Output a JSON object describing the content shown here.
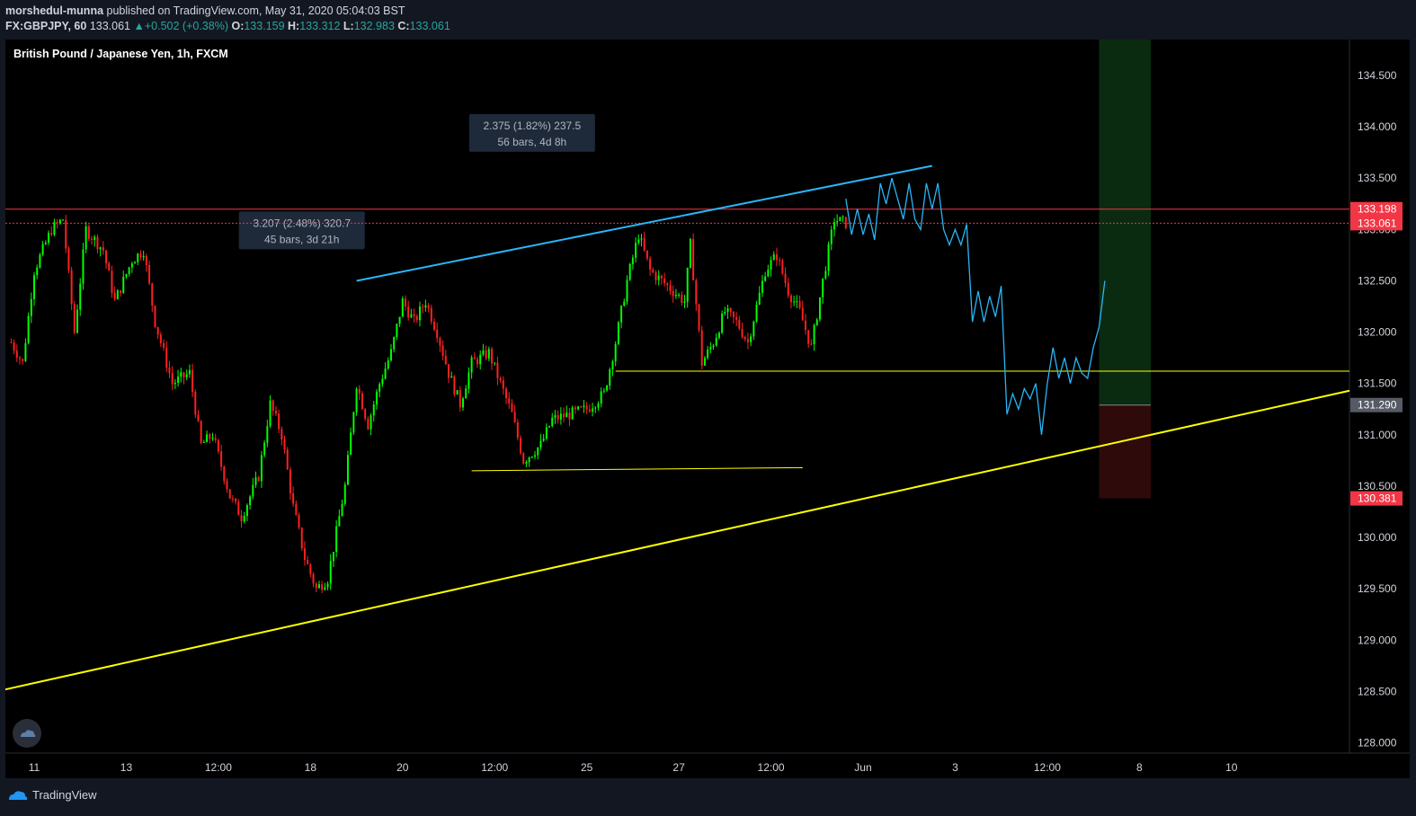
{
  "header": {
    "author": "morshedul-munna",
    "published_text": "published on TradingView.com, May 31, 2020 05:04:03 BST",
    "symbol": "FX:GBPJPY, 60",
    "last": "133.061",
    "change": "+0.502 (+0.38%)",
    "o_label": "O:",
    "o_value": "133.159",
    "h_label": "H:",
    "h_value": "133.312",
    "l_label": "L:",
    "l_value": "132.983",
    "c_label": "C:",
    "c_value": "133.061"
  },
  "footer": {
    "brand": "TradingView"
  },
  "colors": {
    "up": "#26a69a",
    "candle_up": "#00ff00",
    "candle_down": "#ff2020",
    "red_line": "#f23645",
    "cyan": "#29b6f6",
    "yellow": "#ffff00"
  },
  "chart_data": {
    "type": "candlestick",
    "title": "British Pound / Japanese Yen, 1h, FXCM",
    "ylim": [
      127.9,
      134.85
    ],
    "y_ticks": [
      "134.500",
      "134.000",
      "133.500",
      "133.000",
      "132.500",
      "132.000",
      "131.500",
      "131.000",
      "130.500",
      "130.000",
      "129.500",
      "129.000",
      "128.500",
      "128.000"
    ],
    "y_tick_values": [
      134.5,
      134.0,
      133.5,
      133.0,
      132.5,
      132.0,
      131.5,
      131.0,
      130.5,
      130.0,
      129.5,
      129.0,
      128.5,
      128.0
    ],
    "x_ticks": [
      "11",
      "13",
      "12:00",
      "18",
      "20",
      "12:00",
      "25",
      "27",
      "12:00",
      "Jun",
      "3",
      "12:00",
      "8",
      "10"
    ],
    "x_tick_bars": [
      8,
      40,
      72,
      104,
      136,
      168,
      200,
      232,
      264,
      296,
      328,
      360,
      392,
      424
    ],
    "price_labels": [
      {
        "text": "133.198",
        "value": 133.198,
        "bg": "#f23645",
        "fg": "#ffffff"
      },
      {
        "text": "133.061",
        "value": 133.061,
        "bg": "#f23645",
        "fg": "#ffffff"
      },
      {
        "text": "131.290",
        "value": 131.29,
        "bg": "#555a64",
        "fg": "#ffffff"
      },
      {
        "text": "130.381",
        "value": 130.381,
        "bg": "#f23645",
        "fg": "#ffffff"
      }
    ],
    "measure_boxes": [
      {
        "line1": "3.207 (2.48%) 320.7",
        "line2": "45 bars, 3d 21h",
        "bar": 101,
        "price": 133.0
      },
      {
        "line1": "2.375 (1.82%) 237.5",
        "line2": "56 bars, 4d 8h",
        "bar": 181,
        "price": 133.95
      }
    ],
    "waypoints": [
      [
        0,
        131.9
      ],
      [
        4,
        131.7
      ],
      [
        8,
        132.6
      ],
      [
        14,
        133.0
      ],
      [
        18,
        133.1
      ],
      [
        22,
        132.0
      ],
      [
        26,
        133.0
      ],
      [
        32,
        132.8
      ],
      [
        36,
        132.3
      ],
      [
        42,
        132.7
      ],
      [
        46,
        132.8
      ],
      [
        50,
        132.1
      ],
      [
        56,
        131.5
      ],
      [
        62,
        131.6
      ],
      [
        66,
        130.9
      ],
      [
        70,
        131.0
      ],
      [
        76,
        130.4
      ],
      [
        80,
        130.2
      ],
      [
        86,
        130.6
      ],
      [
        90,
        131.3
      ],
      [
        94,
        131.0
      ],
      [
        98,
        130.3
      ],
      [
        102,
        129.8
      ],
      [
        106,
        129.5
      ],
      [
        110,
        129.6
      ],
      [
        116,
        130.5
      ],
      [
        120,
        131.5
      ],
      [
        124,
        131.1
      ],
      [
        128,
        131.5
      ],
      [
        132,
        131.8
      ],
      [
        136,
        132.3
      ],
      [
        140,
        132.1
      ],
      [
        144,
        132.3
      ],
      [
        148,
        132.0
      ],
      [
        152,
        131.6
      ],
      [
        156,
        131.3
      ],
      [
        160,
        131.7
      ],
      [
        166,
        131.8
      ],
      [
        170,
        131.5
      ],
      [
        174,
        131.2
      ],
      [
        178,
        130.75
      ],
      [
        184,
        130.9
      ],
      [
        188,
        131.15
      ],
      [
        194,
        131.2
      ],
      [
        200,
        131.25
      ],
      [
        206,
        131.4
      ],
      [
        210,
        131.9
      ],
      [
        214,
        132.5
      ],
      [
        218,
        132.95
      ],
      [
        222,
        132.6
      ],
      [
        226,
        132.5
      ],
      [
        230,
        132.4
      ],
      [
        234,
        132.3
      ],
      [
        236,
        132.85
      ],
      [
        240,
        131.7
      ],
      [
        244,
        131.9
      ],
      [
        248,
        132.2
      ],
      [
        252,
        132.1
      ],
      [
        256,
        131.9
      ],
      [
        262,
        132.6
      ],
      [
        266,
        132.75
      ],
      [
        270,
        132.4
      ],
      [
        274,
        132.2
      ],
      [
        278,
        131.85
      ],
      [
        282,
        132.5
      ],
      [
        286,
        133.1
      ],
      [
        290,
        133.06
      ]
    ],
    "bar_range": [
      -2,
      465
    ],
    "trendlines": [
      {
        "name": "upper-cyan",
        "color": "#29b6f6",
        "x1": 120,
        "y1": 132.5,
        "x2": 320,
        "y2": 133.62
      },
      {
        "name": "support-yellow",
        "color": "#ffff00",
        "x1": -2,
        "y1": 128.52,
        "x2": 465,
        "y2": 131.43
      },
      {
        "name": "flat-yellow-low",
        "color": "#ffff00",
        "x1": 160,
        "y1": 130.65,
        "x2": 275,
        "y2": 130.68
      },
      {
        "name": "flat-yellow-mid",
        "color": "#ffff00",
        "x1": 210,
        "y1": 131.62,
        "x2": 465,
        "y2": 131.62
      }
    ],
    "hlines": [
      {
        "name": "resistance-solid",
        "value": 133.198,
        "color": "#f23645",
        "dash": false
      },
      {
        "name": "last-price-dotted",
        "value": 133.061,
        "color": "#f23645",
        "dash": true
      }
    ],
    "forecast_path": [
      [
        290,
        133.3
      ],
      [
        292,
        132.95
      ],
      [
        294,
        133.2
      ],
      [
        296,
        132.95
      ],
      [
        298,
        133.15
      ],
      [
        300,
        132.9
      ],
      [
        302,
        133.45
      ],
      [
        304,
        133.25
      ],
      [
        306,
        133.5
      ],
      [
        308,
        133.3
      ],
      [
        310,
        133.1
      ],
      [
        312,
        133.45
      ],
      [
        314,
        133.1
      ],
      [
        316,
        133.0
      ],
      [
        318,
        133.45
      ],
      [
        320,
        133.2
      ],
      [
        322,
        133.45
      ],
      [
        324,
        133.0
      ],
      [
        326,
        132.85
      ],
      [
        328,
        133.0
      ],
      [
        330,
        132.85
      ],
      [
        332,
        133.05
      ],
      [
        334,
        132.1
      ],
      [
        336,
        132.4
      ],
      [
        338,
        132.1
      ],
      [
        340,
        132.35
      ],
      [
        342,
        132.15
      ],
      [
        344,
        132.45
      ],
      [
        346,
        131.2
      ],
      [
        348,
        131.4
      ],
      [
        350,
        131.25
      ],
      [
        352,
        131.45
      ],
      [
        354,
        131.35
      ],
      [
        356,
        131.5
      ],
      [
        358,
        131.0
      ],
      [
        360,
        131.5
      ],
      [
        362,
        131.85
      ],
      [
        364,
        131.55
      ],
      [
        366,
        131.75
      ],
      [
        368,
        131.5
      ],
      [
        370,
        131.75
      ],
      [
        372,
        131.6
      ],
      [
        374,
        131.55
      ],
      [
        376,
        131.85
      ],
      [
        378,
        132.05
      ],
      [
        380,
        132.5
      ]
    ],
    "position_tool": {
      "bar_start": 378,
      "bar_end": 396,
      "top": 134.85,
      "entry": 131.29,
      "stop": 130.381,
      "profit_color": "#0b2b10",
      "loss_color": "#2e0a0a"
    }
  }
}
